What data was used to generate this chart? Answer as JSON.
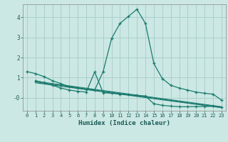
{
  "xlabel": "Humidex (Indice chaleur)",
  "bg_color": "#cce8e4",
  "grid_color": "#aacfcb",
  "line_color": "#1a7a6e",
  "xlim": [
    -0.5,
    23.5
  ],
  "ylim": [
    -0.65,
    4.65
  ],
  "xticks": [
    0,
    1,
    2,
    3,
    4,
    5,
    6,
    7,
    8,
    9,
    10,
    11,
    12,
    13,
    14,
    15,
    16,
    17,
    18,
    19,
    20,
    21,
    22,
    23
  ],
  "yticks": [
    0,
    1,
    2,
    3,
    4
  ],
  "ytick_labels": [
    "-0",
    "1",
    "2",
    "3",
    "4"
  ],
  "lines": [
    {
      "x": [
        0,
        1,
        2,
        3,
        4,
        5,
        6,
        7,
        8,
        9,
        10,
        11,
        12,
        13,
        14,
        15,
        16,
        17,
        18,
        19,
        20,
        21,
        22,
        23
      ],
      "y": [
        1.3,
        1.2,
        1.05,
        0.85,
        0.7,
        0.55,
        0.48,
        0.42,
        0.38,
        1.3,
        2.95,
        3.7,
        4.05,
        4.4,
        3.7,
        1.7,
        0.95,
        0.62,
        0.48,
        0.38,
        0.28,
        0.22,
        0.18,
        -0.12
      ],
      "marker": true
    },
    {
      "x": [
        1,
        2,
        3,
        4,
        5,
        6,
        7,
        8,
        9,
        10,
        11,
        12,
        13,
        14,
        15,
        16,
        17,
        18,
        19,
        20,
        21,
        22,
        23
      ],
      "y": [
        0.85,
        0.75,
        0.62,
        0.48,
        0.38,
        0.32,
        0.28,
        1.28,
        0.25,
        0.22,
        0.18,
        0.15,
        0.12,
        0.08,
        -0.3,
        -0.38,
        -0.42,
        -0.45,
        -0.45,
        -0.44,
        -0.44,
        -0.42,
        -0.48
      ],
      "marker": true
    },
    {
      "x": [
        1,
        23
      ],
      "y": [
        0.82,
        -0.45
      ],
      "marker": false
    },
    {
      "x": [
        1,
        23
      ],
      "y": [
        0.78,
        -0.48
      ],
      "marker": false
    },
    {
      "x": [
        1,
        23
      ],
      "y": [
        0.74,
        -0.5
      ],
      "marker": false
    }
  ]
}
